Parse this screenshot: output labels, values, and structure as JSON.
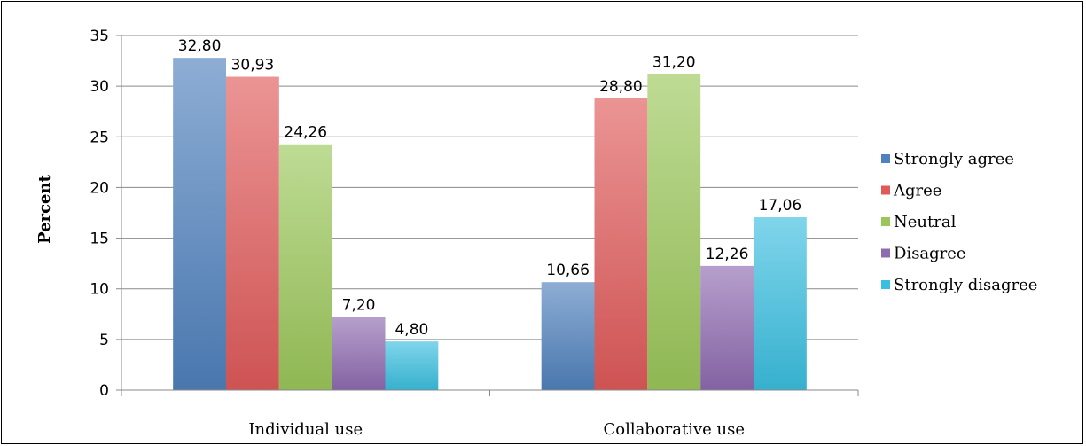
{
  "chart_data": {
    "type": "bar",
    "title": "",
    "xlabel": "",
    "ylabel": "Percent",
    "ylim": [
      0,
      35
    ],
    "yticks": [
      "0",
      "5",
      "10",
      "15",
      "20",
      "25",
      "30",
      "35"
    ],
    "grid": true,
    "legend_position": "right",
    "categories": [
      "Individual use",
      "Collaborative use"
    ],
    "series": [
      {
        "name": "Strongly agree",
        "values": [
          32.8,
          10.66
        ],
        "labels": [
          "32,80",
          "10,66"
        ],
        "color": "#4f81bd"
      },
      {
        "name": "Agree",
        "values": [
          30.93,
          28.8
        ],
        "labels": [
          "30,93",
          "28,80"
        ],
        "color": "#e05a5a"
      },
      {
        "name": "Neutral",
        "values": [
          24.26,
          31.2
        ],
        "labels": [
          "24,26",
          "31,20"
        ],
        "color": "#9bc75a"
      },
      {
        "name": "Disagree",
        "values": [
          7.2,
          12.26
        ],
        "labels": [
          "7,20",
          "12,26"
        ],
        "color": "#8e6bb0"
      },
      {
        "name": "Strongly disagree",
        "values": [
          4.8,
          17.06
        ],
        "labels": [
          "4,80",
          "17,06"
        ],
        "color": "#3bbfe0"
      }
    ]
  }
}
